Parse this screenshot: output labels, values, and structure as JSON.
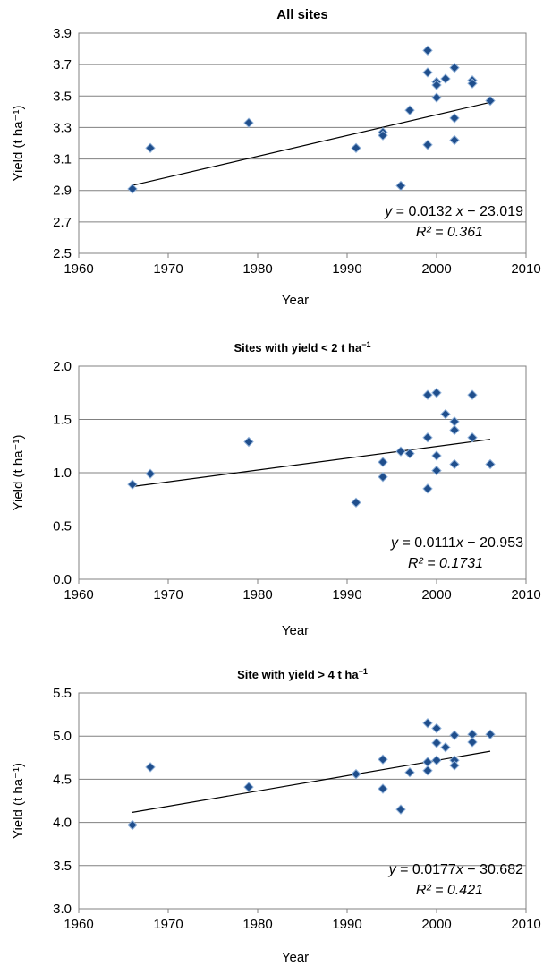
{
  "chart_data": [
    {
      "type": "scatter",
      "title": "All sites",
      "title_suffix": "",
      "xlabel": "Year",
      "ylabel": "Yield (t ha⁻¹)",
      "xlim": [
        1960,
        2010
      ],
      "ylim": [
        2.5,
        3.9
      ],
      "xticks": [
        "1960",
        "1970",
        "1980",
        "1990",
        "2000",
        "2010"
      ],
      "yticks": [
        "2.5",
        "2.7",
        "2.9",
        "3.1",
        "3.3",
        "3.5",
        "3.7",
        "3.9"
      ],
      "grid": "horizontal",
      "marker_color": "#1f4e8c",
      "points": [
        [
          1966,
          2.91
        ],
        [
          1968,
          3.17
        ],
        [
          1979,
          3.33
        ],
        [
          1991,
          3.17
        ],
        [
          1994,
          3.27
        ],
        [
          1994,
          3.25
        ],
        [
          1996,
          2.93
        ],
        [
          1997,
          3.41
        ],
        [
          1999,
          3.79
        ],
        [
          1999,
          3.65
        ],
        [
          1999,
          3.19
        ],
        [
          2000,
          3.59
        ],
        [
          2000,
          3.57
        ],
        [
          2000,
          3.49
        ],
        [
          2001,
          3.61
        ],
        [
          2002,
          3.68
        ],
        [
          2002,
          3.36
        ],
        [
          2002,
          3.22
        ],
        [
          2004,
          3.6
        ],
        [
          2004,
          3.58
        ],
        [
          2006,
          3.47
        ]
      ],
      "trendline": {
        "slope": 0.0132,
        "intercept": -23.019,
        "x_range": [
          1966,
          2006
        ]
      },
      "equation": {
        "y": "y",
        "eq_x_part": " = 0.0132 ",
        "x": "x",
        "eq_rest": " − 23.019",
        "r2": "R² = 0.361"
      }
    },
    {
      "type": "scatter",
      "title": "Sites with yield < 2 t ha",
      "title_suffix": "−1",
      "xlabel": "Year",
      "ylabel": "Yield (t ha⁻¹)",
      "xlim": [
        1960,
        2010
      ],
      "ylim": [
        0.0,
        2.0
      ],
      "xticks": [
        "1960",
        "1970",
        "1980",
        "1990",
        "2000",
        "2010"
      ],
      "yticks": [
        "0.0",
        "0.5",
        "1.0",
        "1.5",
        "2.0"
      ],
      "grid": "horizontal",
      "marker_color": "#1f4e8c",
      "points": [
        [
          1966,
          0.89
        ],
        [
          1968,
          0.99
        ],
        [
          1979,
          1.29
        ],
        [
          1991,
          0.72
        ],
        [
          1994,
          1.1
        ],
        [
          1994,
          0.96
        ],
        [
          1996,
          1.2
        ],
        [
          1997,
          1.18
        ],
        [
          1999,
          1.73
        ],
        [
          1999,
          1.33
        ],
        [
          1999,
          0.85
        ],
        [
          2000,
          1.75
        ],
        [
          2000,
          1.16
        ],
        [
          2000,
          1.02
        ],
        [
          2001,
          1.55
        ],
        [
          2002,
          1.48
        ],
        [
          2002,
          1.4
        ],
        [
          2002,
          1.08
        ],
        [
          2004,
          1.73
        ],
        [
          2004,
          1.33
        ],
        [
          2006,
          1.08
        ]
      ],
      "trendline": {
        "slope": 0.0111,
        "intercept": -20.953,
        "x_range": [
          1966,
          2006
        ]
      },
      "equation": {
        "y": "y",
        "eq_x_part": " = 0.0111",
        "x": "x",
        "eq_rest": " − 20.953",
        "r2": "R² = 0.1731"
      }
    },
    {
      "type": "scatter",
      "title": "Site with yield > 4 t ha",
      "title_suffix": "−1",
      "xlabel": "Year",
      "ylabel": "Yield (t ha⁻¹)",
      "xlim": [
        1960,
        2010
      ],
      "ylim": [
        3.0,
        5.5
      ],
      "xticks": [
        "1960",
        "1970",
        "1980",
        "1990",
        "2000",
        "2010"
      ],
      "yticks": [
        "3.0",
        "3.5",
        "4.0",
        "4.5",
        "5.0",
        "5.5"
      ],
      "grid": "horizontal",
      "marker_color": "#1f4e8c",
      "points": [
        [
          1966,
          3.97
        ],
        [
          1968,
          4.64
        ],
        [
          1979,
          4.41
        ],
        [
          1991,
          4.56
        ],
        [
          1994,
          4.73
        ],
        [
          1994,
          4.39
        ],
        [
          1996,
          4.15
        ],
        [
          1997,
          4.58
        ],
        [
          1999,
          5.15
        ],
        [
          1999,
          4.7
        ],
        [
          1999,
          4.6
        ],
        [
          2000,
          5.09
        ],
        [
          2000,
          4.92
        ],
        [
          2000,
          4.72
        ],
        [
          2001,
          4.87
        ],
        [
          2002,
          5.01
        ],
        [
          2002,
          4.72
        ],
        [
          2002,
          4.66
        ],
        [
          2004,
          5.02
        ],
        [
          2004,
          4.93
        ],
        [
          2006,
          5.02
        ]
      ],
      "trendline": {
        "slope": 0.0177,
        "intercept": -30.682,
        "x_range": [
          1966,
          2006
        ]
      },
      "equation": {
        "y": "y",
        "eq_x_part": " = 0.0177",
        "x": "x",
        "eq_rest": " − 30.682",
        "r2": "R² = 0.421"
      }
    }
  ]
}
